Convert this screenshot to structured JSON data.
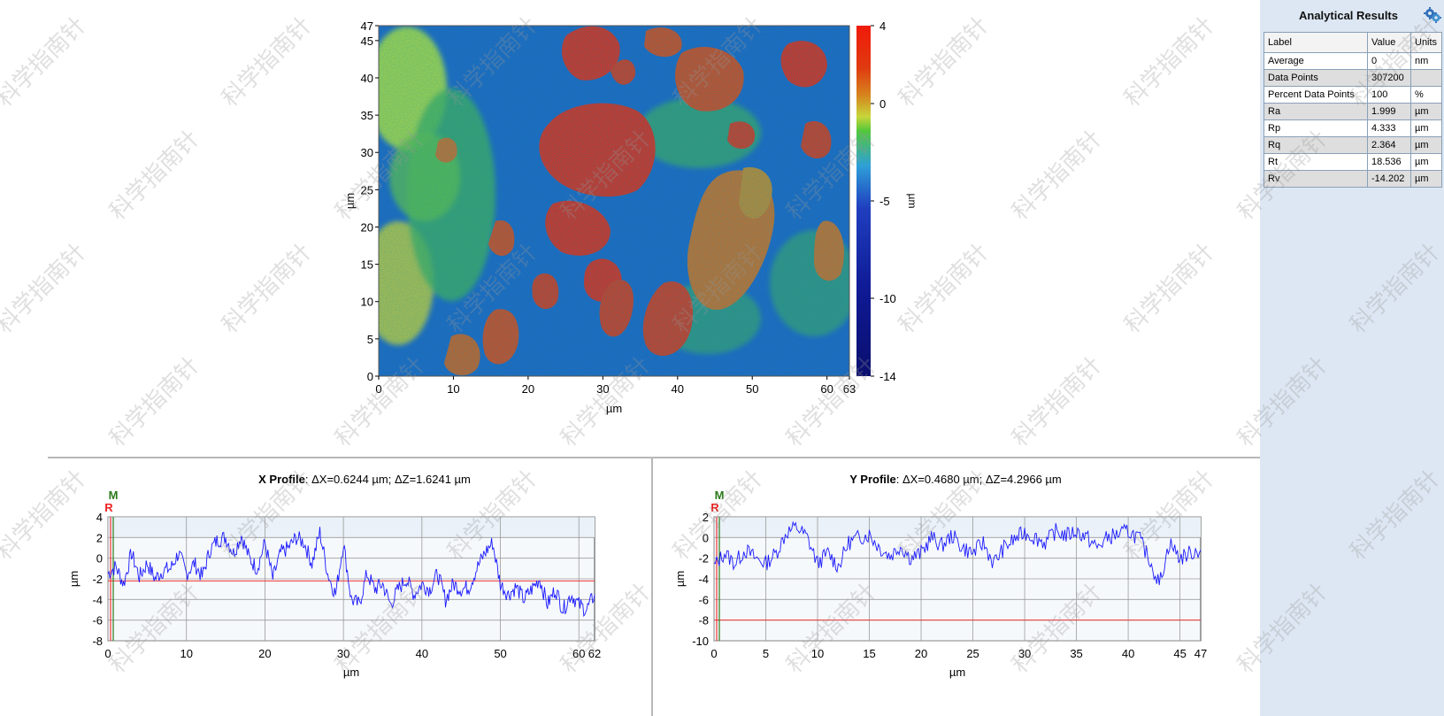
{
  "map": {
    "y_axis_label": "µm",
    "x_axis_label": "µm",
    "y_ticks": [
      "0",
      "5",
      "10",
      "15",
      "20",
      "25",
      "30",
      "35",
      "40",
      "45",
      "47"
    ],
    "x_ticks": [
      "0",
      "10",
      "20",
      "30",
      "40",
      "50",
      "60",
      "63"
    ],
    "colorbar_ticks": [
      "4",
      "0",
      "-5",
      "-10",
      "-14"
    ],
    "colorbar_unit": "µm"
  },
  "results": {
    "title": "Analytical Results",
    "headers": [
      "Label",
      "Value",
      "Units"
    ],
    "rows": [
      {
        "label": "Average",
        "value": "0",
        "units": "nm"
      },
      {
        "label": "Data Points",
        "value": "307200",
        "units": ""
      },
      {
        "label": "Percent Data Points",
        "value": "100",
        "units": "%"
      },
      {
        "label": "Ra",
        "value": "1.999",
        "units": "µm"
      },
      {
        "label": "Rp",
        "value": "4.333",
        "units": "µm"
      },
      {
        "label": "Rq",
        "value": "2.364",
        "units": "µm"
      },
      {
        "label": "Rt",
        "value": "18.536",
        "units": "µm"
      },
      {
        "label": "Rv",
        "value": "-14.202",
        "units": "µm"
      }
    ]
  },
  "x_profile": {
    "title_bold": "X Profile",
    "title_rest": ": ΔX=0.6244 µm; ΔZ=1.6241 µm",
    "marker_m": "M",
    "marker_r": "R",
    "ylabel": "µm",
    "xlabel": "µm",
    "y_ticks": [
      "4",
      "2",
      "0",
      "-2",
      "-4",
      "-6",
      "-8"
    ],
    "x_ticks": [
      "0",
      "10",
      "20",
      "30",
      "40",
      "50",
      "60",
      "62"
    ]
  },
  "y_profile": {
    "title_bold": "Y Profile",
    "title_rest": ": ΔX=0.4680 µm; ΔZ=4.2966 µm",
    "marker_m": "M",
    "marker_r": "R",
    "ylabel": "µm",
    "xlabel": "µm",
    "y_ticks": [
      "2",
      "0",
      "-2",
      "-4",
      "-6",
      "-8",
      "-10"
    ],
    "x_ticks": [
      "0",
      "5",
      "10",
      "15",
      "20",
      "25",
      "30",
      "35",
      "40",
      "45",
      "47"
    ]
  },
  "watermark_text": "科学指南针",
  "chart_data": [
    {
      "type": "heatmap",
      "title": "",
      "xlabel": "µm",
      "ylabel": "µm",
      "xlim": [
        0,
        63
      ],
      "ylim": [
        0,
        47
      ],
      "colorbar_range": [
        -14,
        4
      ],
      "colorbar_unit": "µm",
      "colormap": [
        "#0a0f6e",
        "#1f3fbf",
        "#2f9fd8",
        "#52c83a",
        "#c7d63a",
        "#d6861e",
        "#e03a10",
        "#f01a0a"
      ]
    },
    {
      "type": "line",
      "title": "X Profile: ΔX=0.6244 µm; ΔZ=1.6241 µm",
      "xlabel": "µm",
      "ylabel": "µm",
      "xlim": [
        0,
        62
      ],
      "ylim": [
        -8,
        4
      ],
      "reference_line_y": -2.2,
      "series": [
        {
          "color": "#1a1aff",
          "x": [
            0,
            1,
            2,
            3,
            4,
            5,
            6,
            7,
            8,
            9,
            10,
            11,
            12,
            13,
            14,
            15,
            16,
            17,
            18,
            19,
            20,
            21,
            22,
            23,
            24,
            25,
            26,
            27,
            28,
            29,
            30,
            31,
            32,
            33,
            34,
            35,
            36,
            37,
            38,
            39,
            40,
            41,
            42,
            43,
            44,
            45,
            46,
            47,
            48,
            49,
            50,
            51,
            52,
            53,
            54,
            55,
            56,
            57,
            58,
            59,
            60,
            61,
            62
          ],
          "y": [
            -1.5,
            -0.8,
            -2.5,
            0.5,
            -1.8,
            -0.5,
            -2.0,
            -1.2,
            -1.0,
            0.5,
            -1.5,
            -0.5,
            -1.8,
            0.8,
            1.8,
            2.0,
            0.5,
            2.2,
            0.0,
            -1.0,
            1.5,
            -2.0,
            0.5,
            1.0,
            2.0,
            1.5,
            -0.5,
            2.5,
            -1.5,
            -3.5,
            1.5,
            -4.0,
            -4.5,
            -1.5,
            -3.0,
            -2.5,
            -4.5,
            -3.0,
            -2.0,
            -3.5,
            -2.5,
            -3.0,
            -1.5,
            -4.0,
            -2.5,
            -3.0,
            -2.8,
            -1.0,
            0.5,
            1.5,
            -2.5,
            -3.5,
            -2.8,
            -4.0,
            -3.0,
            -2.0,
            -4.5,
            -3.0,
            -5.0,
            -3.5,
            -4.5,
            -5.0,
            -3.5
          ]
        }
      ]
    },
    {
      "type": "line",
      "title": "Y Profile: ΔX=0.4680 µm; ΔZ=4.2966 µm",
      "xlabel": "µm",
      "ylabel": "µm",
      "xlim": [
        0,
        47
      ],
      "ylim": [
        -10,
        2
      ],
      "reference_line_y": -8.0,
      "series": [
        {
          "color": "#1a1aff",
          "x": [
            0,
            1,
            2,
            3,
            4,
            5,
            6,
            7,
            8,
            9,
            10,
            11,
            12,
            13,
            14,
            15,
            16,
            17,
            18,
            19,
            20,
            21,
            22,
            23,
            24,
            25,
            26,
            27,
            28,
            29,
            30,
            31,
            32,
            33,
            34,
            35,
            36,
            37,
            38,
            39,
            40,
            41,
            42,
            43,
            44,
            45,
            46,
            47
          ],
          "y": [
            -2.8,
            -1.5,
            -2.5,
            -1.2,
            -2.0,
            -2.5,
            -1.5,
            0.5,
            1.0,
            0.0,
            -2.5,
            -1.5,
            -2.8,
            -0.5,
            0.0,
            0.3,
            -1.0,
            -1.8,
            -0.8,
            -2.0,
            -1.5,
            0.0,
            -0.8,
            0.2,
            -1.0,
            -1.5,
            -0.5,
            -2.5,
            -1.0,
            -0.2,
            0.5,
            0.0,
            -0.5,
            0.6,
            0.2,
            0.6,
            0.0,
            -1.0,
            0.0,
            0.3,
            0.6,
            0.0,
            -2.0,
            -4.5,
            -0.5,
            -2.0,
            -1.5,
            -1.2
          ]
        }
      ]
    }
  ]
}
